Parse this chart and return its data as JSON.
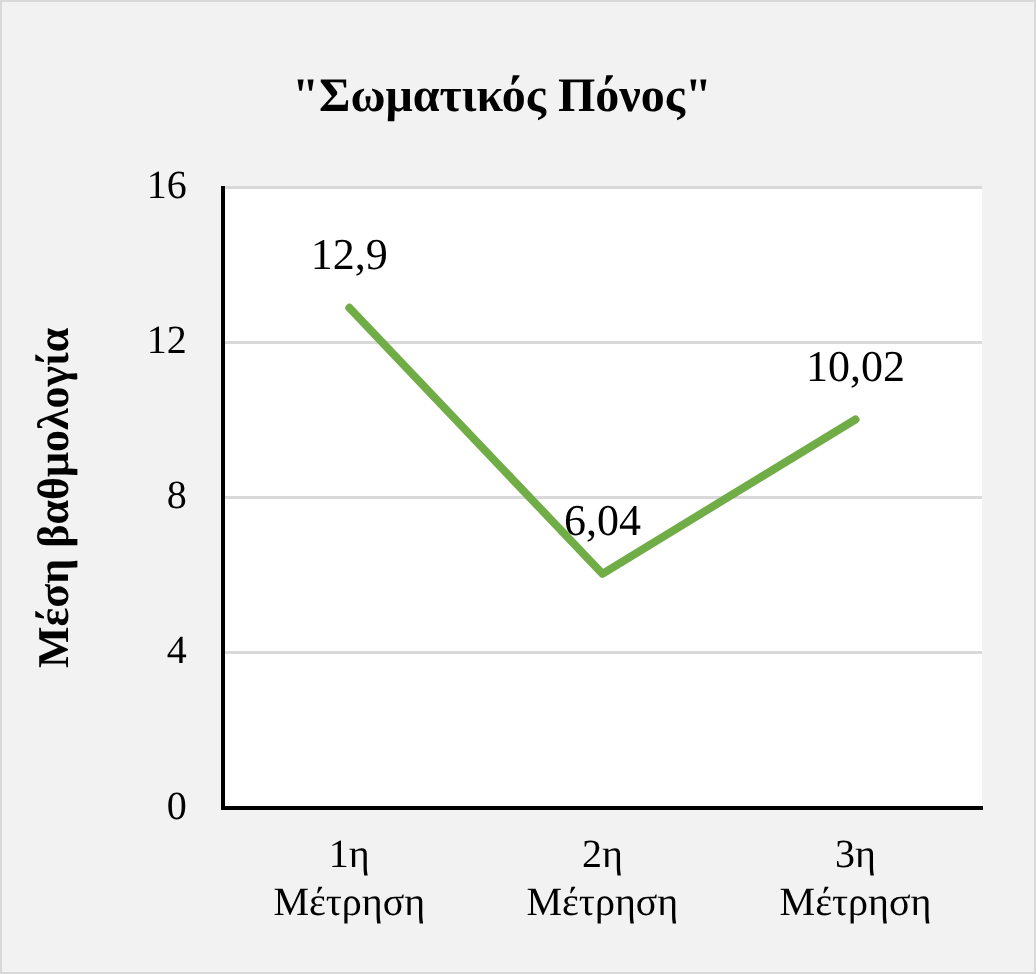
{
  "chart_data": {
    "type": "line",
    "title": "\"Σωματικός Πόνος\"",
    "ylabel": "Μέση βαθμολογία",
    "categories": [
      "1η Μέτρηση",
      "2η Μέτρηση",
      "3η Μέτρηση"
    ],
    "series": [
      {
        "color": "#70ad47",
        "values": [
          12.9,
          6.04,
          10.02
        ],
        "value_labels": [
          "12,9",
          "6,04",
          "10,02"
        ]
      }
    ],
    "ylim": [
      0,
      16
    ],
    "yticks": [
      0,
      4,
      8,
      12,
      16
    ],
    "grid": "y",
    "legend": false,
    "marker": "none",
    "line_style": "solid"
  }
}
